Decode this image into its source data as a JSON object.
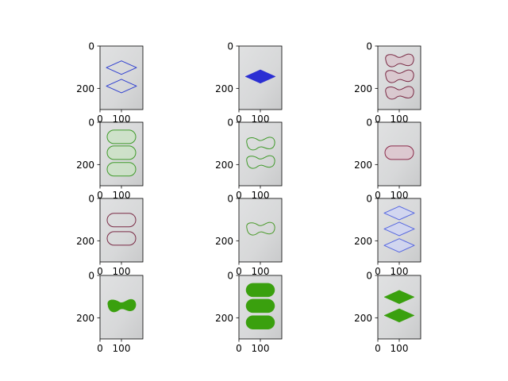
{
  "figure": {
    "background": "#ffffff"
  },
  "chart_data": [
    {
      "type": "image",
      "row": 0,
      "col": 0,
      "shape": "diamond",
      "count": 2,
      "style": "outline",
      "color": "#2f3fd0",
      "x_ticks": [
        0,
        100
      ],
      "y_ticks": [
        0,
        200
      ],
      "xlim": [
        0,
        200
      ],
      "ylim": [
        300,
        0
      ]
    },
    {
      "type": "image",
      "row": 0,
      "col": 1,
      "shape": "diamond",
      "count": 1,
      "style": "filled",
      "color": "#2b2fd3",
      "x_ticks": [
        0,
        100
      ],
      "y_ticks": [
        0,
        200
      ],
      "xlim": [
        0,
        200
      ],
      "ylim": [
        300,
        0
      ]
    },
    {
      "type": "image",
      "row": 0,
      "col": 2,
      "shape": "wave",
      "count": 3,
      "style": "tinted",
      "color": "#7a2a45",
      "x_ticks": [
        0,
        100
      ],
      "y_ticks": [
        0,
        200
      ],
      "xlim": [
        0,
        200
      ],
      "ylim": [
        300,
        0
      ]
    },
    {
      "type": "image",
      "row": 1,
      "col": 0,
      "shape": "pill",
      "count": 3,
      "style": "tinted",
      "color": "#3f9a2a",
      "x_ticks": [
        0,
        100
      ],
      "y_ticks": [
        0,
        200
      ],
      "xlim": [
        0,
        200
      ],
      "ylim": [
        300,
        0
      ]
    },
    {
      "type": "image",
      "row": 1,
      "col": 1,
      "shape": "wave",
      "count": 2,
      "style": "outline",
      "color": "#3f9a2a",
      "x_ticks": [
        0,
        100
      ],
      "y_ticks": [
        0,
        200
      ],
      "xlim": [
        0,
        200
      ],
      "ylim": [
        300,
        0
      ]
    },
    {
      "type": "image",
      "row": 1,
      "col": 2,
      "shape": "pill",
      "count": 1,
      "style": "tinted",
      "color": "#8a2a4a",
      "x_ticks": [
        0,
        100
      ],
      "y_ticks": [
        0,
        200
      ],
      "xlim": [
        0,
        200
      ],
      "ylim": [
        300,
        0
      ]
    },
    {
      "type": "image",
      "row": 2,
      "col": 0,
      "shape": "pill",
      "count": 2,
      "style": "outline",
      "color": "#7a2a45",
      "x_ticks": [
        0,
        100
      ],
      "y_ticks": [
        0,
        200
      ],
      "xlim": [
        0,
        200
      ],
      "ylim": [
        300,
        0
      ]
    },
    {
      "type": "image",
      "row": 2,
      "col": 1,
      "shape": "wave",
      "count": 1,
      "style": "outline",
      "color": "#4a9a2a",
      "x_ticks": [
        0,
        100
      ],
      "y_ticks": [
        0,
        200
      ],
      "xlim": [
        0,
        200
      ],
      "ylim": [
        300,
        0
      ]
    },
    {
      "type": "image",
      "row": 2,
      "col": 2,
      "shape": "diamond",
      "count": 3,
      "style": "tinted",
      "color": "#5566e0",
      "x_ticks": [
        0,
        100
      ],
      "y_ticks": [
        0,
        200
      ],
      "xlim": [
        0,
        200
      ],
      "ylim": [
        300,
        0
      ]
    },
    {
      "type": "image",
      "row": 3,
      "col": 0,
      "shape": "wave",
      "count": 1,
      "style": "filled",
      "color": "#3aa00e",
      "x_ticks": [
        0,
        100
      ],
      "y_ticks": [
        0,
        200
      ],
      "xlim": [
        0,
        200
      ],
      "ylim": [
        300,
        0
      ]
    },
    {
      "type": "image",
      "row": 3,
      "col": 1,
      "shape": "pill",
      "count": 3,
      "style": "filled",
      "color": "#3aa00e",
      "x_ticks": [
        0,
        100
      ],
      "y_ticks": [
        0,
        200
      ],
      "xlim": [
        0,
        200
      ],
      "ylim": [
        300,
        0
      ]
    },
    {
      "type": "image",
      "row": 3,
      "col": 2,
      "shape": "diamond",
      "count": 2,
      "style": "filled",
      "color": "#3aa00e",
      "x_ticks": [
        0,
        100
      ],
      "y_ticks": [
        0,
        200
      ],
      "xlim": [
        0,
        200
      ],
      "ylim": [
        300,
        0
      ]
    }
  ]
}
